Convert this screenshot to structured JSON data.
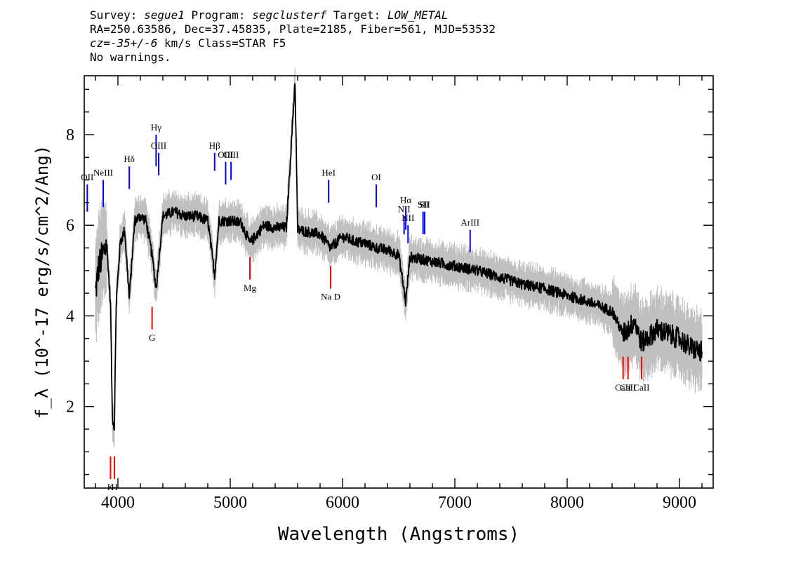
{
  "header": {
    "survey_label": "Survey: ",
    "survey": "segue1",
    "program_label": " Program: ",
    "program": "segclusterf",
    "target_label": " Target: ",
    "target": "LOW_METAL",
    "line2": "RA=250.63586, Dec=37.45835, Plate=2185, Fiber=561, MJD=53532",
    "cz": "cz=-35+/-6",
    "line3_rest": " km/s Class=STAR F5",
    "line4": "No warnings."
  },
  "chart_data": {
    "type": "line",
    "xlabel": "Wavelength (Angstroms)",
    "ylabel": "f_λ (10^-17 erg/s/cm^2/Ang)",
    "xlim": [
      3700,
      9300
    ],
    "ylim": [
      0.2,
      9.3
    ],
    "xticks": [
      4000,
      5000,
      6000,
      7000,
      8000,
      9000
    ],
    "yticks": [
      2,
      4,
      6,
      8
    ],
    "colors": {
      "flux": "#000000",
      "error_band": "#c0c0c0",
      "emission_marker": "#0000ff",
      "absorption_marker": "#ff0000"
    },
    "series": [
      {
        "x": [
          3800,
          3830,
          3860,
          3900,
          3935,
          3950,
          3968,
          3985,
          4020,
          4060,
          4101,
          4150,
          4200,
          4250,
          4300,
          4340,
          4400,
          4500,
          4600,
          4700,
          4800,
          4861,
          4900,
          5000,
          5100,
          5175,
          5300,
          5400,
          5500,
          5577,
          5600,
          5700,
          5800,
          5893,
          6000,
          6100,
          6200,
          6300,
          6400,
          6500,
          6563,
          6600,
          6700,
          6800,
          6900,
          7000,
          7200,
          7400,
          7600,
          7800,
          8000,
          8200,
          8400,
          8498,
          8542,
          8600,
          8662,
          8800,
          9000,
          9100,
          9200
        ],
        "y": [
          4.5,
          5.1,
          5.3,
          5.6,
          4.2,
          1.8,
          1.5,
          4.3,
          5.6,
          5.9,
          4.4,
          6.1,
          6.2,
          6.1,
          5.4,
          4.6,
          6.2,
          6.3,
          6.2,
          6.2,
          6.1,
          4.9,
          6.1,
          6.1,
          6.05,
          5.6,
          6.0,
          5.95,
          5.95,
          9.2,
          5.9,
          5.85,
          5.8,
          5.5,
          5.75,
          5.65,
          5.6,
          5.5,
          5.45,
          5.35,
          4.3,
          5.3,
          5.25,
          5.2,
          5.15,
          5.1,
          5.0,
          4.85,
          4.7,
          4.6,
          4.45,
          4.3,
          4.1,
          3.6,
          3.7,
          3.9,
          3.4,
          3.7,
          3.5,
          3.3,
          3.2
        ]
      }
    ],
    "emission_lines": [
      {
        "label": "OII",
        "wave": 3727,
        "top": 6.9,
        "bottom": 6.3
      },
      {
        "label": "NeIII",
        "wave": 3869,
        "top": 7.0,
        "bottom": 6.4
      },
      {
        "label": "Hδ",
        "wave": 4101,
        "top": 7.3,
        "bottom": 6.8
      },
      {
        "label": "Hγ",
        "wave": 4340,
        "top": 8.0,
        "bottom": 7.3
      },
      {
        "label": "OIII",
        "wave": 4363,
        "top": 7.6,
        "bottom": 7.1
      },
      {
        "label": "Hβ",
        "wave": 4861,
        "top": 7.6,
        "bottom": 7.2
      },
      {
        "label": "OIII",
        "wave": 4959,
        "top": 7.4,
        "bottom": 6.9
      },
      {
        "label": "OIII",
        "wave": 5007,
        "top": 7.4,
        "bottom": 7.0
      },
      {
        "label": "HeI",
        "wave": 5876,
        "top": 7.0,
        "bottom": 6.5
      },
      {
        "label": "OI",
        "wave": 6300,
        "top": 6.9,
        "bottom": 6.4
      },
      {
        "label": "NII",
        "wave": 6548,
        "top": 6.2,
        "bottom": 5.8
      },
      {
        "label": "Hα",
        "wave": 6563,
        "top": 6.4,
        "bottom": 5.9
      },
      {
        "label": "NII",
        "wave": 6583,
        "top": 6.0,
        "bottom": 5.6
      },
      {
        "label": "SII",
        "wave": 6717,
        "top": 6.3,
        "bottom": 5.8
      },
      {
        "label": "SII",
        "wave": 6731,
        "top": 6.3,
        "bottom": 5.8
      },
      {
        "label": "ArIII",
        "wave": 7136,
        "top": 5.9,
        "bottom": 5.4
      }
    ],
    "absorption_lines": [
      {
        "label": "K",
        "wave": 3934,
        "top": 0.9,
        "bottom": 0.4
      },
      {
        "label": "H",
        "wave": 3969,
        "top": 0.9,
        "bottom": 0.4
      },
      {
        "label": "G",
        "wave": 4304,
        "top": 4.2,
        "bottom": 3.7
      },
      {
        "label": "Mg",
        "wave": 5175,
        "top": 5.3,
        "bottom": 4.8
      },
      {
        "label": "Na D",
        "wave": 5894,
        "top": 5.1,
        "bottom": 4.6
      },
      {
        "label": "CaII",
        "wave": 8498,
        "top": 3.1,
        "bottom": 2.6
      },
      {
        "label": "CaII",
        "wave": 8542,
        "top": 3.1,
        "bottom": 2.6
      },
      {
        "label": "CaII",
        "wave": 8662,
        "top": 3.1,
        "bottom": 2.6
      }
    ]
  }
}
